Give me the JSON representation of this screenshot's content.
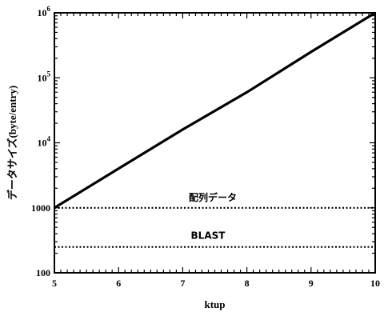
{
  "chart_data": {
    "type": "line",
    "title": "",
    "xlabel": "ktup",
    "ylabel": "データサイズ(byte/entry)",
    "xlim": [
      5,
      10
    ],
    "ylim": [
      100,
      1000000
    ],
    "yscale": "log",
    "x_ticks": [
      5,
      6,
      7,
      8,
      9,
      10
    ],
    "x_tick_labels": [
      "5",
      "6",
      "7",
      "8",
      "9",
      "10"
    ],
    "y_ticks": [
      100,
      1000,
      10000,
      100000,
      1000000
    ],
    "y_tick_labels": [
      {
        "base": "100",
        "exp": ""
      },
      {
        "base": "1000",
        "exp": ""
      },
      {
        "base": "10",
        "exp": "4"
      },
      {
        "base": "10",
        "exp": "5"
      },
      {
        "base": "10",
        "exp": "6"
      }
    ],
    "grid": false,
    "series": [
      {
        "style": "solid",
        "x": [
          5,
          6,
          7,
          8,
          9,
          10
        ],
        "y": [
          1000,
          4000,
          16000,
          60000,
          250000,
          1000000
        ]
      },
      {
        "name": "配列データ",
        "style": "dotted",
        "x": [
          5,
          10
        ],
        "y": [
          1000,
          1000
        ]
      },
      {
        "name": "BLAST",
        "style": "dotted",
        "x": [
          5,
          10
        ],
        "y": [
          250,
          250
        ]
      }
    ],
    "annotations": [
      "配列データ",
      "BLAST"
    ]
  }
}
